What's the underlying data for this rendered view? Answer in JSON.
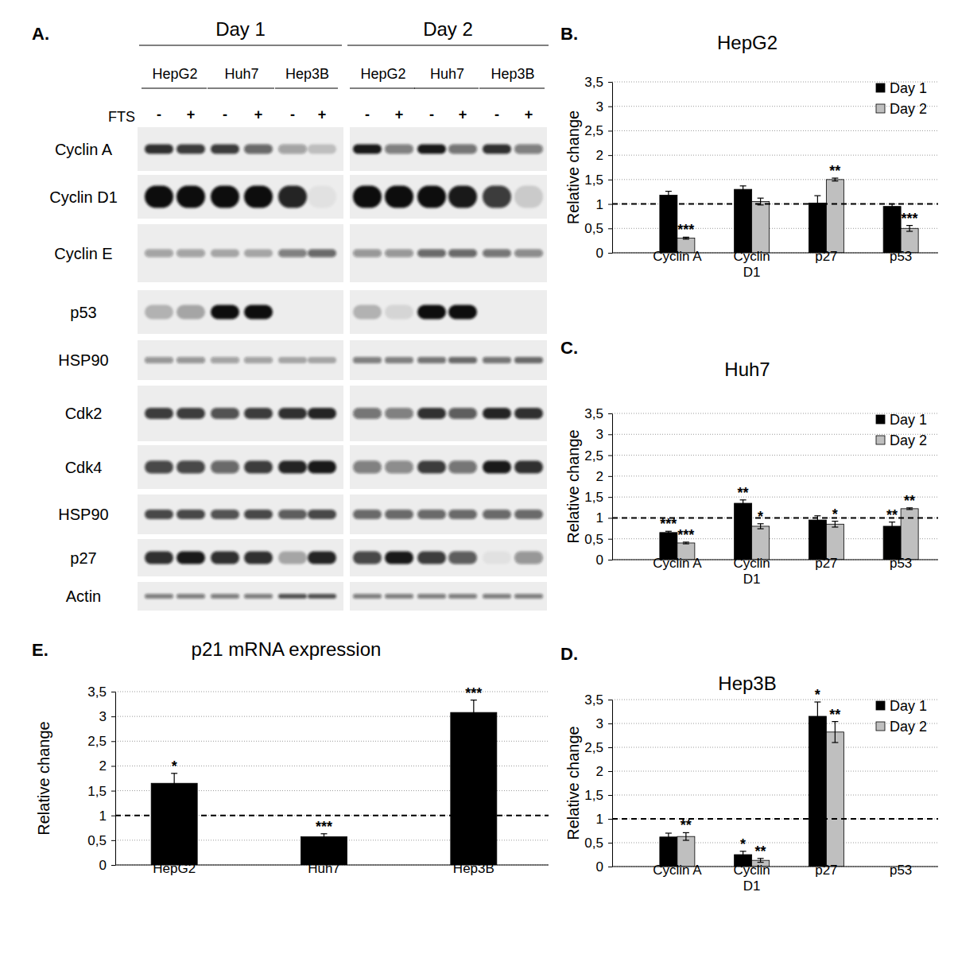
{
  "blot": {
    "panel_label": "A.",
    "groups": [
      {
        "label": "Day 1",
        "cell_lines": [
          "HepG2",
          "Huh7",
          "Hep3B"
        ]
      },
      {
        "label": "Day 2",
        "cell_lines": [
          "HepG2",
          "Huh7",
          "Hep3B"
        ]
      }
    ],
    "treatment_label": "FTS",
    "treatment": [
      "-",
      "+"
    ],
    "rows": [
      {
        "label": "Cyclin A",
        "intensity": [
          0.85,
          0.8,
          0.8,
          0.6,
          0.35,
          0.2,
          0.95,
          0.5,
          0.95,
          0.55,
          0.85,
          0.5
        ]
      },
      {
        "label": "Cyclin D1",
        "intensity": [
          1,
          1,
          1,
          1,
          0.9,
          0.05,
          1,
          1,
          1,
          0.95,
          0.8,
          0.15
        ]
      },
      {
        "label": "Cyclin E",
        "intensity": [
          0.35,
          0.35,
          0.3,
          0.3,
          0.5,
          0.6,
          0.4,
          0.4,
          0.6,
          0.6,
          0.55,
          0.45
        ]
      },
      {
        "label": "p53",
        "intensity": [
          0.25,
          0.3,
          1,
          1,
          0,
          0,
          0.25,
          0.1,
          1,
          1,
          0,
          0
        ]
      },
      {
        "label": "HSP90",
        "intensity": [
          0.4,
          0.4,
          0.35,
          0.35,
          0.3,
          0.3,
          0.5,
          0.5,
          0.55,
          0.6,
          0.55,
          0.6
        ]
      },
      {
        "label": "Cdk2",
        "intensity": [
          0.8,
          0.8,
          0.7,
          0.8,
          0.85,
          0.9,
          0.55,
          0.5,
          0.85,
          0.65,
          0.9,
          0.85
        ]
      },
      {
        "label": "Cdk4",
        "intensity": [
          0.75,
          0.75,
          0.6,
          0.8,
          0.9,
          0.95,
          0.5,
          0.45,
          0.8,
          0.55,
          0.95,
          0.85
        ]
      },
      {
        "label": "HSP90",
        "intensity": [
          0.75,
          0.75,
          0.7,
          0.75,
          0.65,
          0.75,
          0.6,
          0.6,
          0.6,
          0.6,
          0.6,
          0.6
        ]
      },
      {
        "label": "p27",
        "intensity": [
          0.85,
          0.95,
          0.85,
          0.85,
          0.3,
          0.9,
          0.75,
          0.95,
          0.8,
          0.65,
          0.05,
          0.4
        ]
      },
      {
        "label": "Actin",
        "intensity": [
          0.5,
          0.5,
          0.5,
          0.5,
          0.7,
          0.7,
          0.5,
          0.5,
          0.5,
          0.5,
          0.5,
          0.5
        ]
      }
    ]
  },
  "chart_data": [
    {
      "type": "bar",
      "panel_label": "B.",
      "title": "HepG2",
      "ylabel": "Relative change",
      "categories": [
        "Cyclin A",
        "Cyclin\nD1",
        "p27",
        "p53"
      ],
      "series": [
        {
          "name": "Day 1",
          "color": "#000000",
          "values": [
            1.18,
            1.3,
            1.02,
            0.95
          ],
          "errors": [
            0.08,
            0.07,
            0.15,
            0.05
          ],
          "significance": [
            null,
            null,
            null,
            null
          ]
        },
        {
          "name": "Day 2",
          "color": "#bfbfbf",
          "values": [
            0.3,
            1.05,
            1.5,
            0.5
          ],
          "errors": [
            0.02,
            0.07,
            0.03,
            0.06
          ],
          "significance": [
            "***",
            null,
            "**",
            "***"
          ]
        }
      ],
      "ylim": [
        0,
        3.5
      ],
      "yticks": [
        0,
        {
          "value": 0.5,
          "label": "0,5"
        },
        1,
        {
          "value": 1.5,
          "label": "1,5"
        },
        2,
        {
          "value": 2.5,
          "label": "2,5"
        },
        3,
        {
          "value": 3.5,
          "label": "3,5"
        }
      ],
      "grid": true,
      "legend": "upper right",
      "reference_line": 1
    },
    {
      "type": "bar",
      "panel_label": "C.",
      "title": "Huh7",
      "ylabel": "Relative change",
      "categories": [
        "Cyclin A",
        "Cyclin\nD1",
        "p27",
        "p53"
      ],
      "series": [
        {
          "name": "Day 1",
          "color": "#000000",
          "values": [
            0.65,
            1.35,
            0.95,
            0.8
          ],
          "errors": [
            0.03,
            0.08,
            0.1,
            0.1
          ],
          "significance": [
            "***",
            "**",
            null,
            "**"
          ]
        },
        {
          "name": "Day 2",
          "color": "#bfbfbf",
          "values": [
            0.4,
            0.8,
            0.85,
            1.22
          ],
          "errors": [
            0.02,
            0.06,
            0.07,
            0.02
          ],
          "significance": [
            "***",
            "*",
            "*",
            "**"
          ]
        }
      ],
      "ylim": [
        0,
        3.5
      ],
      "yticks": [
        0,
        {
          "value": 0.5,
          "label": "0,5"
        },
        1,
        {
          "value": 1.5,
          "label": "1,5"
        },
        2,
        {
          "value": 2.5,
          "label": "2,5"
        },
        3,
        {
          "value": 3.5,
          "label": "3,5"
        }
      ],
      "grid": true,
      "legend": "upper right",
      "reference_line": 1
    },
    {
      "type": "bar",
      "panel_label": "D.",
      "title": "Hep3B",
      "ylabel": "Relative change",
      "categories": [
        "Cyclin A",
        "Cyclin\nD1",
        "p27",
        "p53"
      ],
      "series": [
        {
          "name": "Day 1",
          "color": "#000000",
          "values": [
            0.62,
            0.25,
            3.15,
            null
          ],
          "errors": [
            0.08,
            0.07,
            0.3,
            null
          ],
          "significance": [
            null,
            "*",
            "*",
            null
          ]
        },
        {
          "name": "Day 2",
          "color": "#bfbfbf",
          "values": [
            0.63,
            0.13,
            2.82,
            null
          ],
          "errors": [
            0.08,
            0.04,
            0.22,
            null
          ],
          "significance": [
            "**",
            "**",
            "**",
            null
          ]
        }
      ],
      "ylim": [
        0,
        3.5
      ],
      "yticks": [
        0,
        {
          "value": 0.5,
          "label": "0,5"
        },
        1,
        {
          "value": 1.5,
          "label": "1,5"
        },
        2,
        {
          "value": 2.5,
          "label": "2,5"
        },
        3,
        {
          "value": 3.5,
          "label": "3,5"
        }
      ],
      "grid": true,
      "legend": "upper right",
      "reference_line": 1
    },
    {
      "type": "bar",
      "panel_label": "E.",
      "title": "p21 mRNA expression",
      "ylabel": "Relative change",
      "categories": [
        "HepG2",
        "Huh7",
        "Hep3B"
      ],
      "values": [
        1.65,
        0.57,
        3.08
      ],
      "errors": [
        0.2,
        0.06,
        0.25
      ],
      "significance": [
        "*",
        "***",
        "***"
      ],
      "color": "#000000",
      "ylim": [
        0,
        3.5
      ],
      "yticks": [
        0,
        {
          "value": 0.5,
          "label": "0,5"
        },
        1,
        {
          "value": 1.5,
          "label": "1,5"
        },
        2,
        {
          "value": 2.5,
          "label": "2,5"
        },
        3,
        {
          "value": 3.5,
          "label": "3,5"
        }
      ],
      "grid": true,
      "reference_line": 1
    }
  ]
}
